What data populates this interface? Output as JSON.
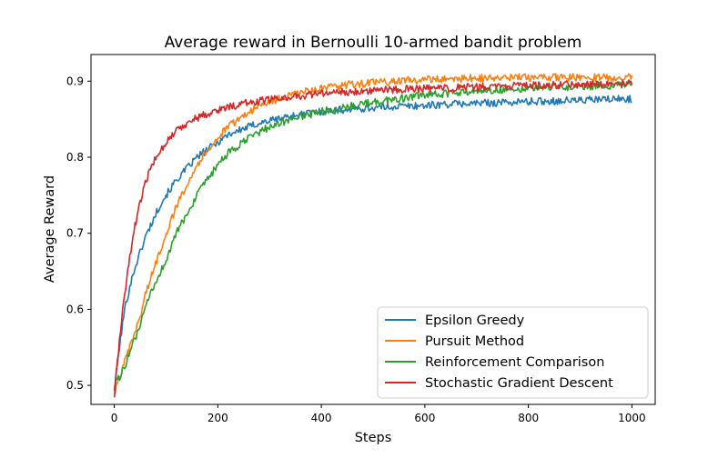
{
  "chart_data": {
    "type": "line",
    "title": "Average reward in Bernoulli 10-armed bandit problem",
    "xlabel": "Steps",
    "ylabel": "Average Reward",
    "xlim": [
      -45,
      1045
    ],
    "ylim": [
      0.475,
      0.935
    ],
    "xticks": [
      0,
      200,
      400,
      600,
      800,
      1000
    ],
    "xtick_labels": [
      "0",
      "200",
      "400",
      "600",
      "800",
      "1000"
    ],
    "yticks": [
      0.5,
      0.6,
      0.7,
      0.8,
      0.9
    ],
    "ytick_labels": [
      "0.5",
      "0.6",
      "0.7",
      "0.8",
      "0.9"
    ],
    "grid": false,
    "legend_position": "bottom-right",
    "x": [
      0,
      10,
      20,
      30,
      40,
      50,
      60,
      70,
      80,
      90,
      100,
      120,
      140,
      160,
      180,
      200,
      220,
      240,
      260,
      280,
      300,
      325,
      350,
      375,
      400,
      450,
      500,
      550,
      600,
      650,
      700,
      750,
      800,
      850,
      900,
      950,
      1000
    ],
    "series": [
      {
        "name": "Epsilon Greedy",
        "color": "#1f77b4",
        "values": [
          0.495,
          0.55,
          0.6,
          0.63,
          0.655,
          0.675,
          0.695,
          0.71,
          0.725,
          0.74,
          0.75,
          0.77,
          0.785,
          0.8,
          0.81,
          0.82,
          0.83,
          0.835,
          0.84,
          0.845,
          0.848,
          0.852,
          0.855,
          0.858,
          0.86,
          0.863,
          0.865,
          0.867,
          0.868,
          0.87,
          0.871,
          0.872,
          0.873,
          0.874,
          0.875,
          0.876,
          0.877
        ]
      },
      {
        "name": "Pursuit Method",
        "color": "#ff7f0e",
        "values": [
          0.49,
          0.51,
          0.53,
          0.55,
          0.57,
          0.59,
          0.62,
          0.64,
          0.66,
          0.68,
          0.7,
          0.735,
          0.765,
          0.79,
          0.81,
          0.825,
          0.84,
          0.85,
          0.86,
          0.867,
          0.873,
          0.878,
          0.883,
          0.887,
          0.89,
          0.895,
          0.898,
          0.9,
          0.902,
          0.903,
          0.904,
          0.904,
          0.905,
          0.905,
          0.905,
          0.905,
          0.905
        ]
      },
      {
        "name": "Reinforcement Comparison",
        "color": "#2ca02c",
        "values": [
          0.5,
          0.51,
          0.525,
          0.545,
          0.56,
          0.58,
          0.6,
          0.62,
          0.635,
          0.65,
          0.665,
          0.7,
          0.725,
          0.75,
          0.77,
          0.79,
          0.805,
          0.815,
          0.825,
          0.833,
          0.84,
          0.846,
          0.852,
          0.856,
          0.86,
          0.866,
          0.872,
          0.877,
          0.881,
          0.884,
          0.887,
          0.889,
          0.891,
          0.892,
          0.893,
          0.894,
          0.895
        ]
      },
      {
        "name": "Stochastic Gradient Descent",
        "color": "#d62728",
        "values": [
          0.485,
          0.56,
          0.62,
          0.67,
          0.71,
          0.74,
          0.765,
          0.785,
          0.8,
          0.81,
          0.82,
          0.835,
          0.845,
          0.852,
          0.857,
          0.862,
          0.866,
          0.869,
          0.872,
          0.874,
          0.876,
          0.878,
          0.88,
          0.882,
          0.884,
          0.886,
          0.888,
          0.889,
          0.89,
          0.891,
          0.892,
          0.893,
          0.894,
          0.895,
          0.896,
          0.897,
          0.898
        ]
      }
    ]
  }
}
